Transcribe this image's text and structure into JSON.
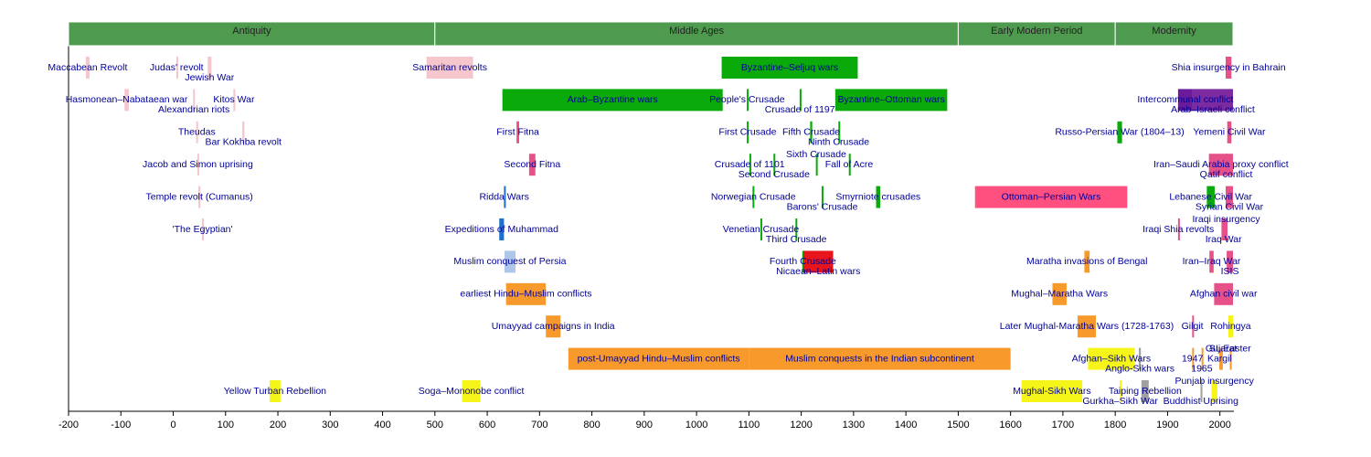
{
  "chart_data": {
    "type": "timeline",
    "xlim": [
      -200,
      2025
    ],
    "xticks": [
      -200,
      -100,
      0,
      100,
      200,
      300,
      400,
      500,
      600,
      700,
      800,
      900,
      1000,
      1100,
      1200,
      1300,
      1400,
      1500,
      1600,
      1700,
      1800,
      1900,
      2000
    ],
    "era_color": "#4e9a4e",
    "eras": [
      {
        "name": "Antiquity",
        "start": -200,
        "end": 500
      },
      {
        "name": "Middle Ages",
        "start": 500,
        "end": 1500
      },
      {
        "name": "Early Modern Period",
        "start": 1500,
        "end": 1800
      },
      {
        "name": "Modernity",
        "start": 1800,
        "end": 2025
      }
    ],
    "lanes": [
      [
        {
          "label": "Maccabean Revolt",
          "start": -167,
          "end": -160,
          "color": "#f5c6cb"
        },
        {
          "label": "Judas' revolt",
          "start": 6,
          "end": 7,
          "color": "#f5c6cb"
        },
        {
          "label": "Jewish War",
          "start": 66,
          "end": 73,
          "color": "#f5c6cb"
        },
        {
          "label": "Samaritan revolts",
          "start": 484,
          "end": 573,
          "color": "#f5c6cb"
        },
        {
          "label": "Byzantine–Seljuq wars",
          "start": 1048,
          "end": 1308,
          "color": "#0aaa0a"
        },
        {
          "label": "Shia insurgency in Bahrain",
          "start": 2011,
          "end": 2022,
          "color": "#e6518a"
        }
      ],
      [
        {
          "label": "Hasmonean–Nabataean war",
          "start": -93,
          "end": -85,
          "color": "#f5c6cb"
        },
        {
          "label": "Alexandrian riots",
          "start": 38,
          "end": 41,
          "color": "#f5c6cb"
        },
        {
          "label": "Kitos War",
          "start": 115,
          "end": 117,
          "color": "#f5c6cb"
        },
        {
          "label": "Arab–Byzantine wars",
          "start": 629,
          "end": 1050,
          "color": "#0aaa0a"
        },
        {
          "label": "People's Crusade",
          "start": 1096,
          "end": 1097,
          "color": "#0aaa0a"
        },
        {
          "label": "Crusade of 1197",
          "start": 1197,
          "end": 1198,
          "color": "#0aaa0a"
        },
        {
          "label": "Byzantine–Ottoman wars",
          "start": 1265,
          "end": 1479,
          "color": "#0aaa0a"
        },
        {
          "label": "Intercommunal conflict",
          "start": 1920,
          "end": 1948,
          "color": "#6a1a9a"
        },
        {
          "label": "Arab–Israeli conflict",
          "start": 1948,
          "end": 2025,
          "color": "#7b2a9f"
        }
      ],
      [
        {
          "label": "Theudas",
          "start": 44,
          "end": 46,
          "color": "#f5c6cb"
        },
        {
          "label": "Bar Kokhba revolt",
          "start": 132,
          "end": 136,
          "color": "#f5c6cb"
        },
        {
          "label": "First Fitna",
          "start": 656,
          "end": 661,
          "color": "#e6518a"
        },
        {
          "label": "First Crusade",
          "start": 1096,
          "end": 1099,
          "color": "#0aaa0a"
        },
        {
          "label": "Fifth Crusade",
          "start": 1217,
          "end": 1221,
          "color": "#0aaa0a"
        },
        {
          "label": "Ninth Crusade",
          "start": 1271,
          "end": 1272,
          "color": "#0aaa0a"
        },
        {
          "label": "Russo-Persian War (1804–13)",
          "start": 1804,
          "end": 1813,
          "color": "#0aaa0a"
        },
        {
          "label": "Yemeni Civil War",
          "start": 2014,
          "end": 2022,
          "color": "#e6518a"
        }
      ],
      [
        {
          "label": "Jacob and Simon uprising",
          "start": 46,
          "end": 48,
          "color": "#f5c6cb"
        },
        {
          "label": "Second Fitna",
          "start": 680,
          "end": 692,
          "color": "#e6518a"
        },
        {
          "label": "Crusade of 1101",
          "start": 1101,
          "end": 1102,
          "color": "#0aaa0a"
        },
        {
          "label": "Second Crusade",
          "start": 1147,
          "end": 1149,
          "color": "#0aaa0a"
        },
        {
          "label": "Sixth Crusade",
          "start": 1228,
          "end": 1229,
          "color": "#0aaa0a"
        },
        {
          "label": "Fall of Acre",
          "start": 1291,
          "end": 1292,
          "color": "#0aaa0a"
        },
        {
          "label": "Iran–Saudi Arabia proxy conflict",
          "start": 1979,
          "end": 2025,
          "color": "#e6518a"
        },
        {
          "label": "Qatif conflict",
          "start": 2011,
          "end": 2013,
          "color": "#e6518a"
        }
      ],
      [
        {
          "label": "Temple revolt (Cumanus)",
          "start": 48,
          "end": 52,
          "color": "#f5c6cb"
        },
        {
          "label": "Ridda Wars",
          "start": 632,
          "end": 633,
          "color": "#1f6fcc"
        },
        {
          "label": "Norwegian Crusade",
          "start": 1107,
          "end": 1110,
          "color": "#0aaa0a"
        },
        {
          "label": "Barons' Crusade",
          "start": 1239,
          "end": 1241,
          "color": "#0aaa0a"
        },
        {
          "label": "Smyrniote crusades",
          "start": 1343,
          "end": 1351,
          "color": "#0aaa0a"
        },
        {
          "label": "Ottoman–Persian Wars",
          "start": 1532,
          "end": 1823,
          "color": "#ff5080"
        },
        {
          "label": "Lebanese Civil War",
          "start": 1975,
          "end": 1990,
          "color": "#0aaa0a"
        },
        {
          "label": "Syrian Civil War",
          "start": 2011,
          "end": 2025,
          "color": "#e6518a"
        }
      ],
      [
        {
          "label": "'The Egyptian'",
          "start": 55,
          "end": 57,
          "color": "#f5c6cb"
        },
        {
          "label": "Expeditions of Muhammad",
          "start": 623,
          "end": 632,
          "color": "#1f6fcc"
        },
        {
          "label": "Venetian Crusade",
          "start": 1122,
          "end": 1124,
          "color": "#0aaa0a"
        },
        {
          "label": "Third Crusade",
          "start": 1189,
          "end": 1192,
          "color": "#0aaa0a"
        },
        {
          "label": "Iraqi Shia revolts",
          "start": 1920,
          "end": 1921,
          "color": "#e6518a"
        },
        {
          "label": "Iraq War",
          "start": 2003,
          "end": 2011,
          "color": "#e6518a"
        },
        {
          "label": "Iraqi insurgency",
          "start": 2011,
          "end": 2013,
          "color": "#e6518a"
        }
      ],
      [
        {
          "label": "Muslim conquest of Persia",
          "start": 633,
          "end": 654,
          "color": "#aec7e8"
        },
        {
          "label": "Fourth Crusade",
          "start": 1202,
          "end": 1204,
          "color": "#0aaa0a"
        },
        {
          "label": "Nicaean–Latin wars",
          "start": 1204,
          "end": 1261,
          "color": "#e8161c"
        },
        {
          "label": "Maratha invasions of Bengal",
          "start": 1741,
          "end": 1751,
          "color": "#f79a2b"
        },
        {
          "label": "Iran–Iraq War",
          "start": 1980,
          "end": 1988,
          "color": "#e6518a"
        },
        {
          "label": "ISIS",
          "start": 2013,
          "end": 2025,
          "color": "#e6518a"
        }
      ],
      [
        {
          "label": "earliest Hindu–Muslim conflicts",
          "start": 636,
          "end": 712,
          "color": "#f79a2b"
        },
        {
          "label": "Mughal–Maratha Wars",
          "start": 1680,
          "end": 1707,
          "color": "#f79a2b"
        },
        {
          "label": "Afghan civil war",
          "start": 1989,
          "end": 2025,
          "color": "#e6518a"
        }
      ],
      [
        {
          "label": "Umayyad campaigns in India",
          "start": 712,
          "end": 740,
          "color": "#f79a2b"
        },
        {
          "label": "Later Mughal-Maratha Wars (1728-1763)",
          "start": 1728,
          "end": 1763,
          "color": "#f79a2b"
        },
        {
          "label": "Gilgit",
          "start": 1947,
          "end": 1948,
          "color": "#e6518a"
        },
        {
          "label": "Rohingya",
          "start": 2016,
          "end": 2025,
          "color": "#f5f51a"
        }
      ],
      [
        {
          "label": "post-Umayyad Hindu–Muslim conflicts",
          "start": 755,
          "end": 1100,
          "color": "#f79a2b"
        },
        {
          "label": "Muslim conquests in the Indian subcontinent",
          "start": 1100,
          "end": 1600,
          "color": "#f79a2b"
        },
        {
          "label": "Afghan–Sikh Wars",
          "start": 1748,
          "end": 1837,
          "color": "#f5f51a"
        },
        {
          "label": "Anglo-Sikh wars",
          "start": 1845,
          "end": 1849,
          "color": "#a0a0a0"
        },
        {
          "label": "1947",
          "start": 1947,
          "end": 1948,
          "color": "#f79a2b"
        },
        {
          "label": "1965",
          "start": 1965,
          "end": 1966,
          "color": "#f79a2b"
        },
        {
          "label": "Kargil",
          "start": 1999,
          "end": 2000,
          "color": "#f79a2b"
        },
        {
          "label": "Gujarat",
          "start": 2002,
          "end": 2003,
          "color": "#f79a2b"
        },
        {
          "label": "SL Easter",
          "start": 2019,
          "end": 2020,
          "color": "#f79a2b"
        }
      ],
      [
        {
          "label": "Yellow Turban Rebellion",
          "start": 184,
          "end": 205,
          "color": "#f5f51a"
        },
        {
          "label": "Soga–Mononobe conflict",
          "start": 552,
          "end": 587,
          "color": "#f5f51a"
        },
        {
          "label": "Mughal-Sikh Wars",
          "start": 1621,
          "end": 1737,
          "color": "#f5f51a"
        },
        {
          "label": "Gurkha–Sikh War",
          "start": 1809,
          "end": 1810,
          "color": "#f5f51a"
        },
        {
          "label": "Taiping Rebellion",
          "start": 1850,
          "end": 1864,
          "color": "#a0a0a0"
        },
        {
          "label": "Buddhist Uprising",
          "start": 1963,
          "end": 1964,
          "color": "#a0a0a0"
        },
        {
          "label": "Punjab insurgency",
          "start": 1984,
          "end": 1995,
          "color": "#f5f51a"
        }
      ]
    ]
  }
}
